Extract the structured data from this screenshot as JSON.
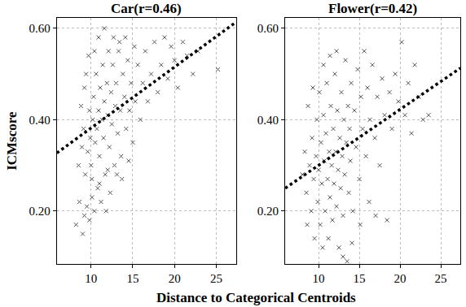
{
  "chart_data": [
    {
      "type": "scatter",
      "title": "Car(r=0.46)",
      "y_label": "ICMscore",
      "x_label": "Distance to Categorical Centroids",
      "xlim": [
        5.9,
        27.4
      ],
      "xticks": [
        10,
        15,
        20,
        25
      ],
      "ylim": [
        0.084,
        0.623
      ],
      "yticks": [
        {
          "value": 0.2,
          "label": "0.20"
        },
        {
          "value": 0.4,
          "label": "0.40"
        },
        {
          "value": 0.6,
          "label": "0.60"
        }
      ],
      "grid": true,
      "series": [
        {
          "type": "scatter",
          "marker": "x",
          "color": "#555555",
          "x": [
            8.2,
            8.6,
            9.0,
            9.2,
            9.5,
            9.8,
            10.1,
            10.4,
            10.8,
            11.2,
            11.8,
            12.3,
            8.5,
            8.9,
            9.1,
            9.3,
            9.6,
            9.8,
            9.9,
            10.0,
            10.2,
            10.3,
            10.5,
            10.6,
            10.7,
            10.9,
            11.0,
            11.1,
            11.3,
            11.4,
            11.5,
            11.6,
            11.7,
            11.9,
            12.0,
            12.1,
            12.2,
            12.4,
            12.5,
            12.6,
            12.8,
            12.9,
            13.0,
            13.2,
            13.3,
            13.5,
            13.6,
            13.8,
            14.0,
            14.2,
            14.4,
            14.6,
            14.8,
            15.0,
            9.4,
            9.7,
            10.4,
            10.9,
            11.6,
            12.7,
            13.4,
            10.1,
            11.0,
            12.0,
            13.1,
            8.8,
            9.2,
            15.3,
            15.6,
            15.9,
            16.2,
            16.5,
            16.8,
            17.2,
            17.6,
            18.0,
            18.4,
            18.8,
            19.2,
            19.6,
            20.0,
            20.4,
            21.0,
            21.5,
            22.2,
            22.8,
            25.2,
            14.1,
            15.2,
            13.7,
            14.5
          ],
          "values": [
            0.17,
            0.22,
            0.15,
            0.19,
            0.21,
            0.18,
            0.23,
            0.2,
            0.25,
            0.22,
            0.2,
            0.24,
            0.3,
            0.34,
            0.38,
            0.28,
            0.33,
            0.42,
            0.36,
            0.3,
            0.4,
            0.45,
            0.35,
            0.5,
            0.38,
            0.42,
            0.32,
            0.47,
            0.4,
            0.52,
            0.36,
            0.44,
            0.28,
            0.48,
            0.41,
            0.55,
            0.34,
            0.46,
            0.39,
            0.52,
            0.3,
            0.43,
            0.48,
            0.37,
            0.55,
            0.42,
            0.32,
            0.5,
            0.45,
            0.38,
            0.53,
            0.42,
            0.48,
            0.35,
            0.5,
            0.54,
            0.55,
            0.58,
            0.6,
            0.58,
            0.57,
            0.27,
            0.26,
            0.29,
            0.28,
            0.43,
            0.47,
            0.44,
            0.52,
            0.4,
            0.48,
            0.55,
            0.44,
            0.5,
            0.57,
            0.46,
            0.52,
            0.58,
            0.49,
            0.56,
            0.53,
            0.47,
            0.57,
            0.54,
            0.5,
            0.55,
            0.51,
            0.58,
            0.56,
            0.27,
            0.31
          ]
        },
        {
          "type": "line",
          "line_style": "dot",
          "color": "#000000",
          "x": [
            5.9,
            27.4
          ],
          "values": [
            0.327,
            0.614
          ]
        }
      ]
    },
    {
      "type": "scatter",
      "title": "Flower(r=0.42)",
      "xlim": [
        5.9,
        27.4
      ],
      "xticks": [
        10,
        15,
        20,
        25
      ],
      "ylim": [
        0.084,
        0.623
      ],
      "yticks": [
        {
          "value": 0.2,
          "label": "0.20"
        },
        {
          "value": 0.4,
          "label": "0.40"
        },
        {
          "value": 0.6,
          "label": "0.60"
        }
      ],
      "grid": true,
      "series": [
        {
          "type": "scatter",
          "marker": "x",
          "color": "#555555",
          "x": [
            8.0,
            8.3,
            8.5,
            8.7,
            8.9,
            9.1,
            9.2,
            9.4,
            9.5,
            9.7,
            9.8,
            9.9,
            10.0,
            10.1,
            10.2,
            10.3,
            10.4,
            10.5,
            10.6,
            10.7,
            10.8,
            10.9,
            11.0,
            11.1,
            11.2,
            11.3,
            11.4,
            11.5,
            11.6,
            11.7,
            11.8,
            11.9,
            12.0,
            12.1,
            12.2,
            12.3,
            12.4,
            12.5,
            12.6,
            12.7,
            12.8,
            12.9,
            13.0,
            13.1,
            13.2,
            13.3,
            13.4,
            13.5,
            13.6,
            13.7,
            13.8,
            13.9,
            14.0,
            14.2,
            14.4,
            14.6,
            14.8,
            15.0,
            15.2,
            15.4,
            15.6,
            15.8,
            16.0,
            16.3,
            16.6,
            16.9,
            17.2,
            17.5,
            17.8,
            18.1,
            18.4,
            18.7,
            19.0,
            19.4,
            19.8,
            20.2,
            20.6,
            21.0,
            21.4,
            21.8,
            22.3,
            22.8,
            23.5,
            9.3,
            10.6,
            11.4,
            12.2,
            16.2,
            17.0,
            14.1,
            15.1,
            8.6,
            13.0
          ],
          "values": [
            0.28,
            0.33,
            0.24,
            0.43,
            0.3,
            0.2,
            0.36,
            0.27,
            0.14,
            0.32,
            0.4,
            0.22,
            0.29,
            0.46,
            0.17,
            0.35,
            0.26,
            0.12,
            0.41,
            0.31,
            0.2,
            0.37,
            0.48,
            0.27,
            0.14,
            0.33,
            0.23,
            0.43,
            0.3,
            0.18,
            0.38,
            0.26,
            0.5,
            0.33,
            0.21,
            0.42,
            0.29,
            0.12,
            0.36,
            0.25,
            0.46,
            0.32,
            0.19,
            0.4,
            0.28,
            0.53,
            0.35,
            0.09,
            0.43,
            0.24,
            0.38,
            0.31,
            0.48,
            0.2,
            0.42,
            0.34,
            0.51,
            0.27,
            0.45,
            0.38,
            0.55,
            0.32,
            0.47,
            0.4,
            0.52,
            0.36,
            0.45,
            0.3,
            0.49,
            0.41,
            0.18,
            0.46,
            0.38,
            0.5,
            0.44,
            0.57,
            0.41,
            0.48,
            0.37,
            0.52,
            0.45,
            0.4,
            0.41,
            0.47,
            0.52,
            0.54,
            0.55,
            0.22,
            0.19,
            0.13,
            0.17,
            0.17,
            0.1
          ]
        },
        {
          "type": "line",
          "line_style": "dot",
          "color": "#000000",
          "x": [
            5.9,
            27.4
          ],
          "values": [
            0.25,
            0.513
          ]
        }
      ]
    }
  ]
}
